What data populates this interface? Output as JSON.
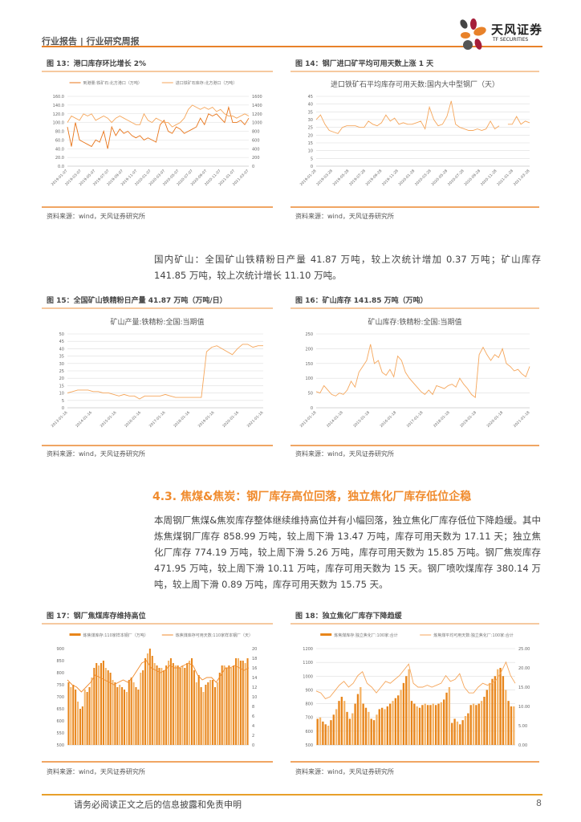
{
  "header": {
    "title": "行业报告 | 行业研究周报",
    "logo_cn": "天风证券",
    "logo_en": "TF SECURITIES"
  },
  "colors": {
    "accent": "#e8822a",
    "dark_orange": "#e8751a",
    "light_orange": "#f5a65b",
    "section": "#f08b2d"
  },
  "source_text": "资料来源：wind，天风证券研究所",
  "figures": [
    {
      "title": "图 13：港口库存环比增长 2%"
    },
    {
      "title": "图 14：钢厂进口矿平均可用天数上涨 1 天"
    },
    {
      "title": "图 15：全国矿山铁精粉日产量 41.87 万吨（万吨/日）"
    },
    {
      "title": "图 16：矿山库存 141.85 万吨（万吨）"
    },
    {
      "title": "图 17：钢厂焦煤库存维持高位"
    },
    {
      "title": "图 18：独立焦化厂库存下降趋缓"
    }
  ],
  "paragraph1": "国内矿山：全国矿山铁精粉日产量 41.87 万吨，较上次统计增加 0.37 万吨；矿山库存 141.85 万吨，较上次统计增长 11.10 万吨。",
  "section_heading": "4.3. 焦煤&焦炭：钢厂库存高位回落，独立焦化厂库存低位企稳",
  "paragraph2": "本周钢厂焦煤&焦炭库存整体继续维持高位并有小幅回落，独立焦化厂库存低位下降趋缓。其中炼焦煤钢厂库存 858.99 万吨，较上周下滑 13.47 万吨，库存可用天数为 17.11 天；独立焦化厂库存 774.19 万吨，较上周下滑 5.26 万吨，库存可用天数为 15.85 万吨。钢厂焦炭库存 471.95 万吨，较上周下滑 10.11 万吨，库存可用天数为 15 天。钢厂喷吹煤库存 380.14 万吨，较上周下滑 0.89 万吨，库存可用天数为 15.75 天。",
  "footer": {
    "disclaimer": "请务必阅读正文之后的信息披露和免责申明",
    "page": "8"
  },
  "chart_data": [
    {
      "type": "line",
      "title": "",
      "legend": [
        "到港量:铁矿石:北方港口（万吨）",
        "进口铁矿石库存:北方港口（万吨）"
      ],
      "legend_position": "top",
      "grid": true,
      "xticks": [
        "2019-01-07",
        "2019-03-07",
        "2019-05-07",
        "2019-07-07",
        "2019-09-07",
        "2019-11-07",
        "2020-01-07",
        "2020-03-07",
        "2020-05-07",
        "2020-07-07",
        "2020-09-07",
        "2020-11-07",
        "2021-01-07",
        "2021-03-07"
      ],
      "ylim": [
        0,
        160
      ],
      "yticks": [
        "0.0",
        "20.0",
        "40.0",
        "60.0",
        "80.0",
        "100.0",
        "120.0",
        "140.0",
        "160.0"
      ],
      "y2lim": [
        0,
        1600
      ],
      "y2ticks": [
        "0",
        "200",
        "400",
        "600",
        "800",
        "1000",
        "1200",
        "1400",
        "1600"
      ],
      "series": [
        {
          "axis": "left",
          "color": "#e8751a",
          "values": [
            90,
            45,
            100,
            60,
            55,
            50,
            45,
            60,
            55,
            80,
            40,
            90,
            70,
            85,
            75,
            80,
            70,
            65,
            70,
            60,
            65,
            60,
            55,
            95,
            105,
            80,
            75,
            90,
            85,
            75,
            80,
            85,
            90,
            110,
            95,
            120,
            115,
            120,
            110,
            100,
            135,
            100,
            100,
            105,
            95,
            110
          ]
        },
        {
          "axis": "right",
          "color": "#f5a65b",
          "values": [
            1000,
            1150,
            1100,
            1050,
            1200,
            1150,
            1200,
            1050,
            1100,
            1150,
            1100,
            1000,
            1100,
            1150,
            1100,
            1050,
            1000,
            950,
            950,
            1200,
            1050,
            1000,
            1100,
            1050,
            1000,
            1000,
            900,
            950,
            1000,
            1100,
            1300,
            1400,
            1350,
            1300,
            1350,
            1300,
            1350,
            1250,
            1300,
            1200,
            1150,
            1150,
            1100,
            1150,
            1200,
            1150
          ]
        }
      ]
    },
    {
      "type": "line",
      "title": "进口铁矿石平均库存可用天数:国内大中型钢厂（天）",
      "grid": true,
      "xticks": [
        "2019-01-28",
        "2019-03-28",
        "2019-05-28",
        "2019-07-28",
        "2019-09-28",
        "2019-11-28",
        "2020-01-28",
        "2020-03-28",
        "2020-05-28",
        "2020-07-28",
        "2020-09-28",
        "2020-11-28",
        "2021-01-28",
        "2021-03-28"
      ],
      "ylim": [
        0,
        45
      ],
      "yticks": [
        "0",
        "5",
        "10",
        "15",
        "20",
        "25",
        "30",
        "35",
        "40",
        "45"
      ],
      "series": [
        {
          "color": "#f5a65b",
          "values": [
            30,
            33,
            27,
            23,
            22,
            21,
            25,
            26,
            26,
            26,
            25,
            25,
            29,
            27,
            26,
            28,
            33,
            29,
            31,
            27,
            28,
            27,
            27,
            28,
            29,
            24,
            38,
            30,
            26,
            27,
            32,
            42,
            27,
            25,
            24,
            23,
            23,
            24,
            23,
            24,
            29,
            24,
            26,
            null,
            27,
            27,
            32,
            27,
            29,
            28
          ]
        }
      ]
    },
    {
      "type": "line",
      "title": "矿山产量:铁精粉:全国:当期值",
      "grid": true,
      "xticks": [
        "2013-01-16",
        "2014-01-16",
        "2015-01-16",
        "2016-01-16",
        "2017-01-16",
        "2018-01-16",
        "2019-01-16",
        "2020-01-16",
        "2021-01-16"
      ],
      "ylim": [
        0,
        50
      ],
      "yticks": [
        "0",
        "5",
        "10",
        "15",
        "20",
        "25",
        "30",
        "35",
        "40",
        "45",
        "50"
      ],
      "series": [
        {
          "color": "#f5a65b",
          "values": [
            10,
            11,
            12,
            12,
            12,
            11,
            11,
            10,
            10,
            9,
            8,
            9,
            8,
            8,
            6,
            8,
            8,
            8,
            8,
            9,
            8,
            7,
            7,
            7,
            7,
            7,
            7,
            38,
            41,
            42,
            40,
            38,
            36,
            40,
            43,
            43,
            41,
            42,
            42
          ]
        }
      ]
    },
    {
      "type": "line",
      "title": "矿山库存:铁精粉:全国:当期值",
      "grid": true,
      "xticks": [
        "2013-01-18",
        "2014-01-18",
        "2015-01-18",
        "2016-01-18",
        "2017-01-18",
        "2018-01-18",
        "2019-01-18",
        "2020-01-18",
        "2021-01-18"
      ],
      "ylim": [
        0,
        250
      ],
      "yticks": [
        "0",
        "50",
        "100",
        "150",
        "200",
        "250"
      ],
      "series": [
        {
          "color": "#f5a65b",
          "values": [
            55,
            50,
            75,
            60,
            45,
            40,
            50,
            45,
            60,
            90,
            70,
            120,
            140,
            160,
            215,
            150,
            160,
            120,
            110,
            130,
            105,
            175,
            160,
            120,
            100,
            85,
            70,
            55,
            45,
            60,
            45,
            75,
            70,
            65,
            75,
            80,
            70,
            100,
            80,
            65,
            45,
            35,
            180,
            205,
            180,
            160,
            180,
            170,
            200,
            150,
            140,
            125,
            130,
            115,
            105,
            140
          ]
        }
      ]
    },
    {
      "type": "bar+line",
      "title": "",
      "legend": [
        "炼焦煤库存:110家样本钢厂（万吨）",
        "炼焦煤库存可用天数:110家样本钢厂（天）"
      ],
      "legend_position": "top",
      "grid": false,
      "ylim": [
        500,
        900
      ],
      "yticks": [
        "500",
        "550",
        "600",
        "650",
        "700",
        "750",
        "800",
        "850",
        "900"
      ],
      "y2lim": [
        0,
        20
      ],
      "y2ticks": [
        "0",
        "2",
        "4",
        "6",
        "8",
        "10",
        "12",
        "14",
        "16",
        "18",
        "20"
      ],
      "series": [
        {
          "type": "bar",
          "axis": "left",
          "color": "#e8851a",
          "values": [
            760,
            740,
            750,
            730,
            680,
            650,
            660,
            730,
            720,
            740,
            780,
            820,
            840,
            830,
            840,
            850,
            820,
            810,
            800,
            770,
            760,
            740,
            750,
            740,
            730,
            720,
            770,
            780,
            760,
            740,
            730,
            800,
            810,
            860,
            880,
            900,
            870,
            840,
            830,
            820,
            820,
            810,
            830,
            850,
            860,
            840,
            830,
            830,
            820,
            830,
            820,
            840,
            850,
            860,
            810,
            760,
            790,
            740,
            720,
            750,
            760,
            770,
            770,
            740,
            760,
            800,
            830,
            830,
            820,
            830,
            820,
            830,
            860,
            860,
            850,
            850,
            840,
            860
          ]
        },
        {
          "type": "line",
          "axis": "right",
          "color": "#f08b2d",
          "values": [
            13.5,
            12.5,
            12,
            11,
            12,
            13,
            14.5,
            14,
            13.5,
            13,
            12.5,
            13,
            13.5,
            13,
            14,
            15.5,
            17,
            17.5,
            16,
            15.5,
            15,
            15.5,
            16.5,
            16,
            16,
            16.5,
            17,
            16.5,
            14.5,
            13.5,
            14,
            14,
            13,
            14.5,
            16,
            16,
            16.5,
            16,
            15.5,
            16
          ]
        }
      ]
    },
    {
      "type": "bar+line",
      "title": "",
      "legend": [
        "炼焦煤库存:独立焦化厂:100家:合计",
        "炼焦煤平均可用天数:独立焦化厂:100家:合计"
      ],
      "legend_position": "top",
      "grid": true,
      "ylim": [
        500,
        1200
      ],
      "yticks": [
        "500",
        "600",
        "700",
        "800",
        "900",
        "1000",
        "1100",
        "1200"
      ],
      "y2lim": [
        0,
        25
      ],
      "y2ticks": [
        "0.00",
        "5.00",
        "10.00",
        "15.00",
        "20.00",
        "25.00"
      ],
      "series": [
        {
          "type": "bar",
          "axis": "left",
          "color": "#e8851a",
          "values": [
            690,
            700,
            670,
            650,
            640,
            680,
            720,
            760,
            820,
            850,
            820,
            740,
            690,
            730,
            800,
            870,
            920,
            800,
            770,
            740,
            690,
            680,
            720,
            760,
            770,
            760,
            780,
            800,
            820,
            840,
            860,
            900,
            950,
            1000,
            1050,
            820,
            800,
            780,
            770,
            790,
            800,
            790,
            790,
            800,
            790,
            800,
            810,
            830,
            880,
            920,
            660,
            690,
            670,
            650,
            680,
            710,
            730,
            790,
            800,
            790,
            800,
            820,
            850,
            900,
            950,
            980,
            1000,
            1050,
            1060,
            1000,
            900,
            820,
            780,
            780
          ]
        },
        {
          "type": "line",
          "axis": "right",
          "color": "#f5a65b",
          "values": [
            14,
            13.5,
            12,
            12.5,
            14,
            15.5,
            16.5,
            15,
            16,
            18,
            19,
            16,
            15,
            13.5,
            15,
            16.5,
            16,
            17,
            18,
            19.5,
            21,
            16,
            15,
            15,
            15.5,
            15,
            15.5,
            16,
            18,
            16.5,
            17,
            18.5,
            15,
            13.5,
            13.5,
            15,
            16,
            15.5,
            16,
            17,
            19,
            21.5,
            18,
            16
          ]
        }
      ]
    }
  ]
}
